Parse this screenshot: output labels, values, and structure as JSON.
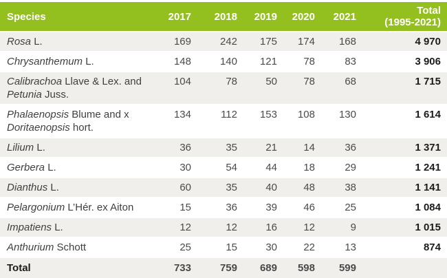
{
  "colors": {
    "header_bg": "#93c01f",
    "header_text": "#ffffff",
    "stripe_bg": "#f0efeb",
    "body_text": "#3f3f3f",
    "total_text": "#1c1c1a",
    "total_border": "#2b2a28"
  },
  "table": {
    "header": {
      "species": "Species",
      "years": [
        "2017",
        "2018",
        "2019",
        "2020",
        "2021"
      ],
      "total_line1": "Total",
      "total_line2": "(1995-2021)"
    },
    "rows": [
      {
        "species_parts": [
          {
            "text": "Rosa",
            "italic": true
          },
          {
            "text": " L.",
            "italic": false
          }
        ],
        "values": [
          "169",
          "242",
          "175",
          "174",
          "168"
        ],
        "total": "4 970"
      },
      {
        "species_parts": [
          {
            "text": "Chrysanthemum",
            "italic": true
          },
          {
            "text": " L.",
            "italic": false
          }
        ],
        "values": [
          "148",
          "140",
          "121",
          "78",
          "83"
        ],
        "total": "3 906"
      },
      {
        "species_parts": [
          {
            "text": "Calibrachoa",
            "italic": true
          },
          {
            "text": " Llave & Lex. and",
            "italic": false
          },
          {
            "break": true
          },
          {
            "text": "Petunia",
            "italic": true
          },
          {
            "text": " Juss.",
            "italic": false
          }
        ],
        "values": [
          "104",
          "78",
          "50",
          "78",
          "68"
        ],
        "total": "1 715"
      },
      {
        "species_parts": [
          {
            "text": "Phalaenopsis",
            "italic": true
          },
          {
            "text": " Blume and x",
            "italic": false
          },
          {
            "break": true
          },
          {
            "text": "Doritaenopsis",
            "italic": true
          },
          {
            "text": " hort.",
            "italic": false
          }
        ],
        "values": [
          "134",
          "112",
          "153",
          "108",
          "130"
        ],
        "total": "1 614"
      },
      {
        "species_parts": [
          {
            "text": "Lilium",
            "italic": true
          },
          {
            "text": " L.",
            "italic": false
          }
        ],
        "values": [
          "36",
          "35",
          "21",
          "14",
          "36"
        ],
        "total": "1 371"
      },
      {
        "species_parts": [
          {
            "text": "Gerbera",
            "italic": true
          },
          {
            "text": " L.",
            "italic": false
          }
        ],
        "values": [
          "30",
          "54",
          "44",
          "18",
          "29"
        ],
        "total": "1 241"
      },
      {
        "species_parts": [
          {
            "text": "Dianthus",
            "italic": true
          },
          {
            "text": " L.",
            "italic": false
          }
        ],
        "values": [
          "60",
          "35",
          "40",
          "48",
          "38"
        ],
        "total": "1 141"
      },
      {
        "species_parts": [
          {
            "text": "Pelargonium",
            "italic": true
          },
          {
            "text": " L’Hér. ex Aiton",
            "italic": false
          }
        ],
        "values": [
          "15",
          "36",
          "39",
          "46",
          "25"
        ],
        "total": "1 084"
      },
      {
        "species_parts": [
          {
            "text": "Impatiens",
            "italic": true
          },
          {
            "text": " L.",
            "italic": false
          }
        ],
        "values": [
          "12",
          "12",
          "16",
          "12",
          "9"
        ],
        "total": "1 015"
      },
      {
        "species_parts": [
          {
            "text": "Anthurium",
            "italic": true
          },
          {
            "text": " Schott",
            "italic": false
          }
        ],
        "values": [
          "25",
          "15",
          "30",
          "22",
          "13"
        ],
        "total": "874"
      }
    ],
    "total_row": {
      "label": "Total",
      "values": [
        "733",
        "759",
        "689",
        "598",
        "599"
      ],
      "total": ""
    }
  }
}
